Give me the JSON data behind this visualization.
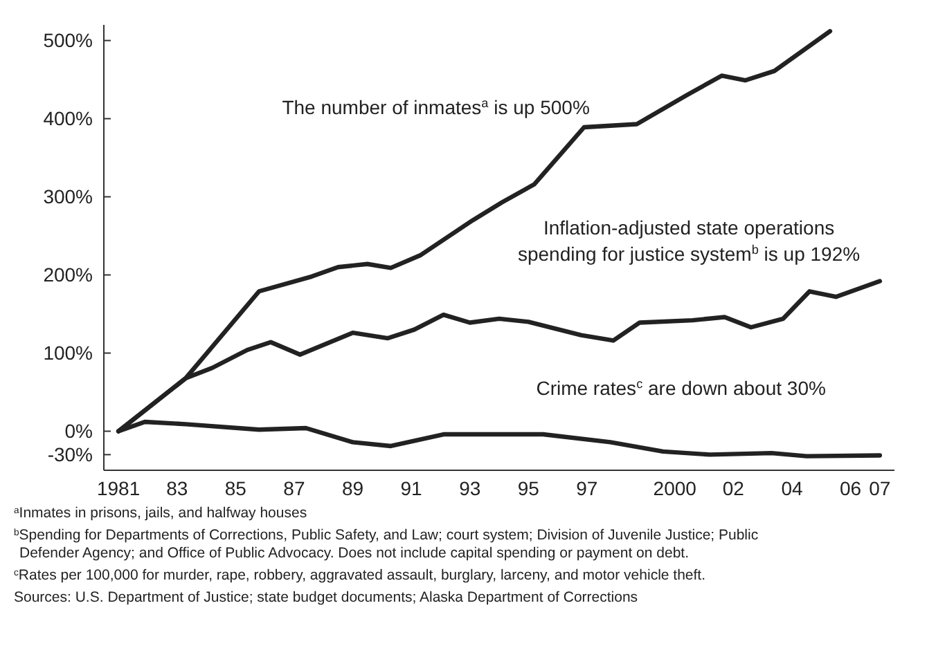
{
  "chart_data": {
    "type": "line",
    "xlim": [
      1980.5,
      2007.5
    ],
    "ylim": [
      -50,
      520
    ],
    "xticks": [
      {
        "value": 1981,
        "label": "1981"
      },
      {
        "value": 1983,
        "label": "83"
      },
      {
        "value": 1985,
        "label": "85"
      },
      {
        "value": 1987,
        "label": "87"
      },
      {
        "value": 1989,
        "label": "89"
      },
      {
        "value": 1991,
        "label": "91"
      },
      {
        "value": 1993,
        "label": "93"
      },
      {
        "value": 1995,
        "label": "95"
      },
      {
        "value": 1997,
        "label": "97"
      },
      {
        "value": 2000,
        "label": "2000"
      },
      {
        "value": 2002,
        "label": "02"
      },
      {
        "value": 2004,
        "label": "04"
      },
      {
        "value": 2006,
        "label": "06"
      },
      {
        "value": 2007,
        "label": "07"
      }
    ],
    "yticks": [
      {
        "value": -30,
        "label": "-30%"
      },
      {
        "value": 0,
        "label": "0%"
      },
      {
        "value": 100,
        "label": "100%"
      },
      {
        "value": 200,
        "label": "200%"
      },
      {
        "value": 300,
        "label": "300%"
      },
      {
        "value": 400,
        "label": "400%"
      },
      {
        "value": 500,
        "label": "500%"
      }
    ],
    "grid": false,
    "marker": "none",
    "line_style": "solid",
    "series": [
      {
        "name": "The number of inmates$^{a}$ is up 500%",
        "color": "#222222",
        "x": [
          1981,
          1983.3,
          1985.8,
          1987.6,
          1988.5,
          1989.5,
          1990.3,
          1991.3,
          1993.1,
          1994.1,
          1995.2,
          1996.9,
          1998.7,
          2000.4,
          2001.6,
          2002.4,
          2003.4,
          2005.3
        ],
        "values": [
          0,
          68,
          179,
          198,
          210,
          214,
          209,
          225,
          270,
          293,
          316,
          389,
          393,
          430,
          455,
          449,
          461,
          512
        ]
      },
      {
        "name": "Inflation-adjusted state operations spending for justice system$^{b}$ is up 192%",
        "color": "#222222",
        "x": [
          1981,
          1983.3,
          1984.2,
          1985.4,
          1986.2,
          1987.2,
          1989,
          1990.2,
          1991.1,
          1992.1,
          1993,
          1994,
          1995,
          1996.8,
          1997.9,
          1998.8,
          2000.6,
          2001.7,
          2002.6,
          2003.7,
          2004.6,
          2005.5,
          2007
        ],
        "values": [
          0,
          68,
          81,
          104,
          114,
          98,
          126,
          119,
          130,
          149,
          139,
          144,
          140,
          123,
          116,
          139,
          142,
          146,
          133,
          144,
          179,
          172,
          192
        ]
      },
      {
        "name": "Crime rates$^{c}$ are down about 30%",
        "color": "#222222",
        "x": [
          1981,
          1981.9,
          1983.3,
          1985.8,
          1987.4,
          1989,
          1990.3,
          1992.1,
          1995.5,
          1997.8,
          1999.6,
          2001.2,
          2003.3,
          2004.5,
          2007
        ],
        "values": [
          0,
          12,
          9,
          2,
          4,
          -14,
          -19,
          -4,
          -4,
          -14,
          -26,
          -30,
          -28,
          -32,
          -31
        ]
      }
    ],
    "annotations": [
      "$^{a}$Inmates in prisons, jails, and halfway houses",
      "$^{b}$Spending for Departments of Corrections, Public Safety, and Law; court system; Division of Juvenile Justice; Public Defender Agency; and Office of Public Advocacy. Does not include capital spending or payment on debt.",
      "$^{c}$Rates per 100,000 for murder, rape, robbery, aggravated assault, burglary, larceny, and motor vehicle theft.",
      "Sources: U.S. Department of Justice; state budget documents; Alaska Department of Corrections"
    ]
  }
}
